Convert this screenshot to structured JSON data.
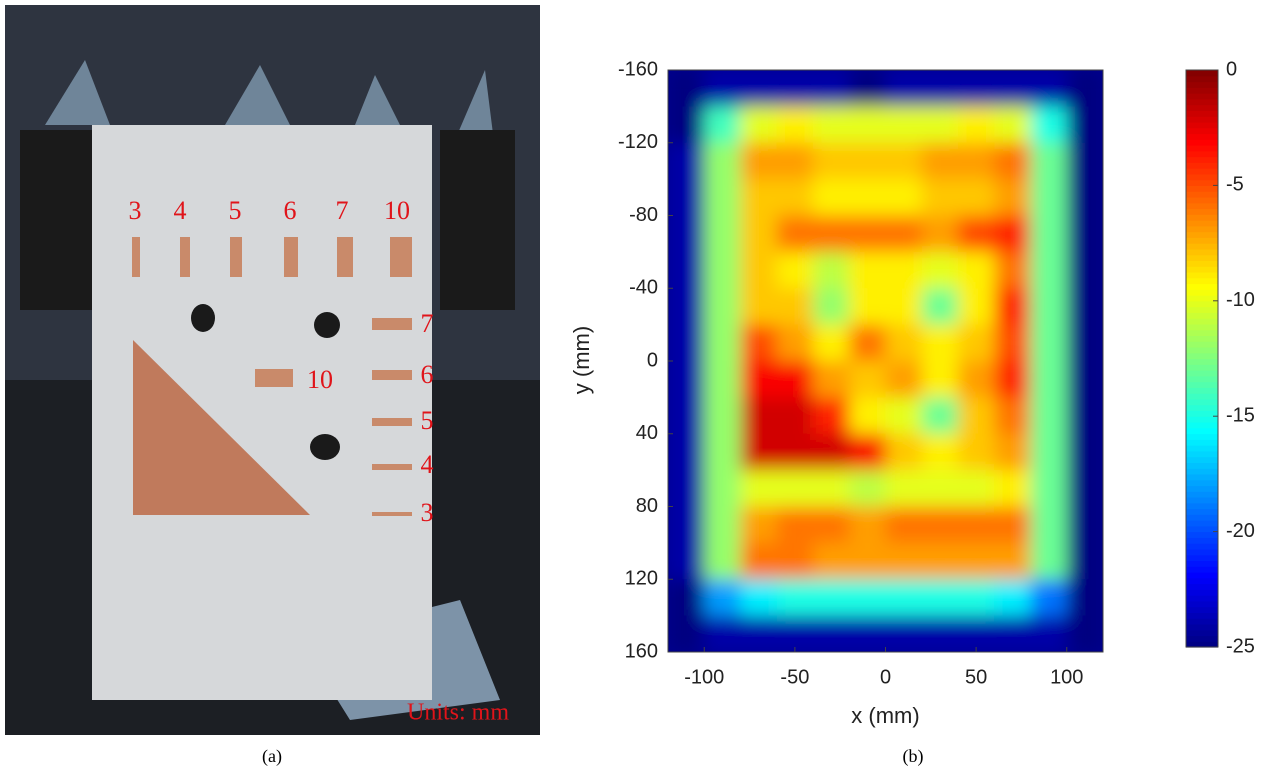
{
  "photo": {
    "labels": {
      "top": [
        "3",
        "4",
        "5",
        "6",
        "7",
        "10"
      ],
      "right": [
        "7",
        "6",
        "5",
        "4",
        "3"
      ],
      "middle": "10",
      "units": "Units: mm"
    },
    "caption": "(a)"
  },
  "chart_data": {
    "type": "heatmap",
    "xlabel": "x (mm)",
    "ylabel": "y (mm)",
    "caption": "(b)",
    "xlim": [
      -120,
      120
    ],
    "xticks": [
      -100,
      -50,
      0,
      50,
      100
    ],
    "ylim": [
      -160,
      160
    ],
    "yticks": [
      -160,
      -120,
      -80,
      -40,
      0,
      40,
      80,
      120,
      160
    ],
    "x": [
      -110,
      -90,
      -70,
      -50,
      -30,
      -10,
      10,
      30,
      50,
      70,
      90,
      110
    ],
    "y": [
      -150,
      -130,
      -110,
      -90,
      -70,
      -50,
      -30,
      -10,
      10,
      30,
      50,
      70,
      90,
      110,
      130,
      150
    ],
    "values": [
      [
        -25,
        -24,
        -24,
        -24,
        -24,
        -25,
        -24,
        -24,
        -24,
        -24,
        -24,
        -25
      ],
      [
        -25,
        -14,
        -10,
        -9,
        -10,
        -10,
        -10,
        -10,
        -9,
        -10,
        -15,
        -25
      ],
      [
        -24,
        -12,
        -7,
        -7,
        -8,
        -8,
        -8,
        -7,
        -7,
        -6,
        -13,
        -25
      ],
      [
        -24,
        -12,
        -8,
        -8,
        -9,
        -9,
        -9,
        -8,
        -8,
        -7,
        -13,
        -25
      ],
      [
        -24,
        -12,
        -8,
        -6,
        -6,
        -6,
        -6,
        -7,
        -5,
        -4,
        -13,
        -25
      ],
      [
        -24,
        -12,
        -8,
        -9,
        -11,
        -9,
        -9,
        -10,
        -9,
        -6,
        -13,
        -25
      ],
      [
        -24,
        -12,
        -8,
        -8,
        -12,
        -9,
        -9,
        -13,
        -9,
        -4,
        -13,
        -25
      ],
      [
        -24,
        -12,
        -5,
        -7,
        -9,
        -6,
        -8,
        -9,
        -8,
        -5,
        -13,
        -25
      ],
      [
        -24,
        -12,
        -3,
        -3,
        -7,
        -8,
        -7,
        -9,
        -7,
        -4,
        -13,
        -25
      ],
      [
        -24,
        -12,
        -2,
        -2,
        -4,
        -9,
        -10,
        -13,
        -8,
        -6,
        -13,
        -25
      ],
      [
        -24,
        -12,
        -2,
        -2,
        -2,
        -3,
        -8,
        -9,
        -8,
        -7,
        -13,
        -25
      ],
      [
        -24,
        -12,
        -10,
        -10,
        -10,
        -11,
        -10,
        -10,
        -10,
        -9,
        -13,
        -25
      ],
      [
        -24,
        -12,
        -7,
        -6,
        -6,
        -7,
        -6,
        -6,
        -6,
        -6,
        -13,
        -25
      ],
      [
        -24,
        -12,
        -6,
        -6,
        -7,
        -7,
        -7,
        -7,
        -7,
        -7,
        -13,
        -25
      ],
      [
        -25,
        -18,
        -16,
        -15,
        -15,
        -15,
        -15,
        -15,
        -15,
        -16,
        -19,
        -25
      ],
      [
        -25,
        -24,
        -24,
        -24,
        -24,
        -24,
        -24,
        -24,
        -24,
        -24,
        -24,
        -25
      ]
    ],
    "colorbar": {
      "lim": [
        -25,
        0
      ],
      "ticks": [
        0,
        -5,
        -10,
        -15,
        -20,
        -25
      ]
    }
  }
}
